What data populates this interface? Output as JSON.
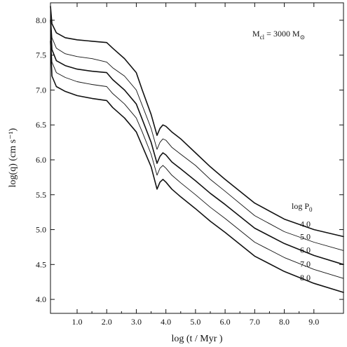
{
  "chart_data": {
    "type": "line",
    "title": "",
    "xlabel": "log (t / Myr )",
    "ylabel": "log(q) (cm s⁻¹)",
    "xlim": [
      0.1,
      10.0
    ],
    "ylim": [
      3.8,
      8.25
    ],
    "x_ticks": [
      1.0,
      2.0,
      3.0,
      4.0,
      5.0,
      6.0,
      7.0,
      8.0,
      9.0
    ],
    "x_tick_labels": [
      "1.0",
      "2.0",
      "3.0",
      "4.0",
      "5.0",
      "6.0",
      "7.0",
      "8.0",
      "9.0"
    ],
    "y_ticks": [
      4.0,
      4.5,
      5.0,
      5.5,
      6.0,
      6.5,
      7.0,
      7.5,
      8.0
    ],
    "y_tick_labels": [
      "4.0",
      "4.5",
      "5.0",
      "5.5",
      "6.0",
      "6.5",
      "7.0",
      "7.5",
      "8.0"
    ],
    "grid": false,
    "annotations": {
      "mass_label": {
        "prefix": "M",
        "sub": "cl",
        "middle": " = 3000 M",
        "sub2": "⊙"
      },
      "legend_title": {
        "prefix": "log P",
        "sub": "0"
      }
    },
    "series": [
      {
        "name": "4.0",
        "width": 1.6,
        "x": [
          0.1,
          0.15,
          0.3,
          0.6,
          1.0,
          1.5,
          2.0,
          2.2,
          2.6,
          3.0,
          3.2,
          3.5,
          3.7,
          3.8,
          3.9,
          4.0,
          4.2,
          4.5,
          5.0,
          5.5,
          6.0,
          7.0,
          8.0,
          9.0,
          10.0
        ],
        "y": [
          8.2,
          7.95,
          7.82,
          7.75,
          7.72,
          7.7,
          7.68,
          7.6,
          7.45,
          7.25,
          7.0,
          6.65,
          6.35,
          6.45,
          6.5,
          6.48,
          6.4,
          6.3,
          6.1,
          5.9,
          5.72,
          5.38,
          5.15,
          5.0,
          4.9
        ]
      },
      {
        "name": "5.0",
        "width": 0.9,
        "x": [
          0.1,
          0.15,
          0.3,
          0.6,
          1.0,
          1.5,
          2.0,
          2.2,
          2.6,
          3.0,
          3.2,
          3.5,
          3.7,
          3.8,
          3.9,
          4.0,
          4.2,
          4.5,
          5.0,
          5.5,
          6.0,
          7.0,
          8.0,
          9.0,
          10.0
        ],
        "y": [
          8.1,
          7.75,
          7.6,
          7.52,
          7.48,
          7.45,
          7.4,
          7.32,
          7.2,
          7.0,
          6.78,
          6.45,
          6.15,
          6.25,
          6.3,
          6.28,
          6.18,
          6.08,
          5.92,
          5.72,
          5.55,
          5.2,
          4.97,
          4.82,
          4.7
        ]
      },
      {
        "name": "6.0",
        "width": 1.6,
        "x": [
          0.1,
          0.15,
          0.3,
          0.6,
          1.0,
          1.5,
          2.0,
          2.2,
          2.6,
          3.0,
          3.2,
          3.5,
          3.7,
          3.8,
          3.9,
          4.0,
          4.2,
          4.5,
          5.0,
          5.5,
          6.0,
          7.0,
          8.0,
          9.0,
          10.0
        ],
        "y": [
          8.0,
          7.58,
          7.42,
          7.35,
          7.3,
          7.27,
          7.25,
          7.15,
          7.0,
          6.8,
          6.58,
          6.25,
          5.95,
          6.05,
          6.1,
          6.07,
          5.97,
          5.87,
          5.7,
          5.52,
          5.36,
          5.02,
          4.8,
          4.63,
          4.5
        ]
      },
      {
        "name": "7.0",
        "width": 0.9,
        "x": [
          0.1,
          0.15,
          0.3,
          0.6,
          1.0,
          1.5,
          2.0,
          2.2,
          2.6,
          3.0,
          3.2,
          3.5,
          3.7,
          3.8,
          3.9,
          4.0,
          4.2,
          4.5,
          5.0,
          5.5,
          6.0,
          7.0,
          8.0,
          9.0,
          10.0
        ],
        "y": [
          7.85,
          7.4,
          7.25,
          7.18,
          7.12,
          7.08,
          7.05,
          6.95,
          6.8,
          6.6,
          6.4,
          6.08,
          5.78,
          5.88,
          5.92,
          5.88,
          5.78,
          5.67,
          5.5,
          5.32,
          5.16,
          4.82,
          4.6,
          4.43,
          4.3
        ]
      },
      {
        "name": "8.0",
        "width": 1.6,
        "x": [
          0.1,
          0.15,
          0.3,
          0.6,
          1.0,
          1.5,
          2.0,
          2.2,
          2.6,
          3.0,
          3.2,
          3.5,
          3.7,
          3.8,
          3.9,
          4.0,
          4.2,
          4.5,
          5.0,
          5.5,
          6.0,
          7.0,
          8.0,
          9.0,
          10.0
        ],
        "y": [
          7.7,
          7.2,
          7.05,
          6.98,
          6.92,
          6.88,
          6.85,
          6.75,
          6.6,
          6.4,
          6.2,
          5.9,
          5.58,
          5.68,
          5.72,
          5.68,
          5.58,
          5.47,
          5.3,
          5.12,
          4.96,
          4.62,
          4.4,
          4.23,
          4.1
        ]
      }
    ]
  }
}
